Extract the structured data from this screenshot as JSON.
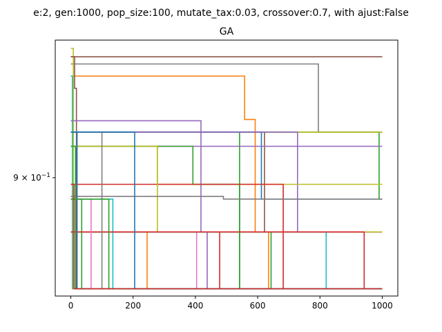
{
  "chart_data": {
    "type": "line",
    "suptitle": "e:2, gen:1000, pop_size:100, mutate_tax:0.03, crossover:0.7, with ajust:False",
    "title": "GA",
    "xlabel": "",
    "ylabel": "",
    "xlim": [
      -50,
      1050
    ],
    "ylim": [
      0.815,
      1.01
    ],
    "yscale": "log",
    "grid": false,
    "legend": "none",
    "x_ticks": [
      {
        "value": 0,
        "label": "0"
      },
      {
        "value": 200,
        "label": "200"
      },
      {
        "value": 400,
        "label": "400"
      },
      {
        "value": 600,
        "label": "600"
      },
      {
        "value": 800,
        "label": "800"
      },
      {
        "value": 1000,
        "label": "1000"
      }
    ],
    "y_ticks": [
      {
        "value": 0.9,
        "label": "9×10⁻¹",
        "base": "9 × 10",
        "exp": "−1"
      }
    ],
    "series": [
      {
        "color": "#8c564b",
        "points": [
          [
            0,
            0.996
          ],
          [
            1000,
            0.996
          ]
        ]
      },
      {
        "color": "#7f7f7f",
        "points": [
          [
            0,
            0.99
          ],
          [
            795,
            0.99
          ],
          [
            795,
            0.935
          ],
          [
            1000,
            0.935
          ]
        ]
      },
      {
        "color": "#ff7f0e",
        "points": [
          [
            0,
            0.98
          ],
          [
            558,
            0.98
          ],
          [
            558,
            0.945
          ],
          [
            592,
            0.945
          ],
          [
            592,
            0.86
          ],
          [
            1000,
            0.86
          ]
        ]
      },
      {
        "color": "#17becf",
        "points": [
          [
            0,
            0.98
          ],
          [
            5,
            0.98
          ],
          [
            5,
            0.82
          ],
          [
            1000,
            0.82
          ]
        ]
      },
      {
        "color": "#bcbd22",
        "points": [
          [
            0,
            1.003
          ],
          [
            8,
            1.003
          ],
          [
            8,
            0.82
          ],
          [
            1000,
            0.82
          ]
        ]
      },
      {
        "color": "#8c564b",
        "points": [
          [
            0,
            0.996
          ],
          [
            12,
            0.996
          ],
          [
            12,
            0.97
          ],
          [
            18,
            0.97
          ],
          [
            18,
            0.82
          ],
          [
            1000,
            0.82
          ]
        ]
      },
      {
        "color": "#9467bd",
        "points": [
          [
            0,
            0.944
          ],
          [
            418,
            0.944
          ],
          [
            418,
            0.86
          ],
          [
            1000,
            0.86
          ]
        ]
      },
      {
        "color": "#2ca02c",
        "points": [
          [
            0,
            0.935
          ],
          [
            990,
            0.935
          ],
          [
            990,
            0.884
          ],
          [
            1000,
            0.884
          ]
        ]
      },
      {
        "color": "#bcbd22",
        "points": [
          [
            0,
            0.935
          ],
          [
            1000,
            0.935
          ]
        ]
      },
      {
        "color": "#8c564b",
        "points": [
          [
            0,
            0.935
          ],
          [
            622,
            0.935
          ],
          [
            622,
            0.86
          ],
          [
            1000,
            0.86
          ]
        ]
      },
      {
        "color": "#2ca02c",
        "points": [
          [
            0,
            0.935
          ],
          [
            542,
            0.935
          ],
          [
            542,
            0.82
          ],
          [
            1000,
            0.82
          ]
        ]
      },
      {
        "color": "#1f77b4",
        "points": [
          [
            0,
            0.935
          ],
          [
            612,
            0.935
          ],
          [
            612,
            0.884
          ],
          [
            1000,
            0.884
          ]
        ]
      },
      {
        "color": "#9467bd",
        "points": [
          [
            0,
            0.935
          ],
          [
            728,
            0.935
          ],
          [
            728,
            0.86
          ],
          [
            1000,
            0.86
          ]
        ]
      },
      {
        "color": "#9467bd",
        "points": [
          [
            0,
            0.924
          ],
          [
            1000,
            0.924
          ]
        ]
      },
      {
        "color": "#bcbd22",
        "points": [
          [
            0,
            0.924
          ],
          [
            278,
            0.924
          ],
          [
            278,
            0.895
          ],
          [
            1000,
            0.895
          ]
        ]
      },
      {
        "color": "#2ca02c",
        "points": [
          [
            0,
            0.924
          ],
          [
            392,
            0.924
          ],
          [
            392,
            0.895
          ],
          [
            542,
            0.895
          ],
          [
            542,
            0.82
          ],
          [
            1000,
            0.82
          ]
        ]
      },
      {
        "color": "#d62728",
        "points": [
          [
            0,
            0.895
          ],
          [
            682,
            0.895
          ],
          [
            682,
            0.82
          ],
          [
            1000,
            0.82
          ]
        ]
      },
      {
        "color": "#bcbd22",
        "points": [
          [
            0,
            0.924
          ],
          [
            278,
            0.924
          ],
          [
            278,
            0.86
          ],
          [
            1000,
            0.86
          ]
        ]
      },
      {
        "color": "#7f7f7f",
        "points": [
          [
            0,
            0.886
          ],
          [
            490,
            0.886
          ],
          [
            490,
            0.884
          ],
          [
            1000,
            0.884
          ]
        ]
      },
      {
        "color": "#2ca02c",
        "points": [
          [
            0,
            0.884
          ],
          [
            35,
            0.884
          ],
          [
            35,
            0.82
          ],
          [
            1000,
            0.82
          ]
        ]
      },
      {
        "color": "#17becf",
        "points": [
          [
            0,
            0.884
          ],
          [
            135,
            0.884
          ],
          [
            135,
            0.82
          ],
          [
            1000,
            0.82
          ]
        ]
      },
      {
        "color": "#d62728",
        "points": [
          [
            0,
            0.86
          ],
          [
            478,
            0.86
          ],
          [
            478,
            0.82
          ],
          [
            1000,
            0.82
          ]
        ]
      },
      {
        "color": "#e377c2",
        "points": [
          [
            0,
            0.86
          ],
          [
            404,
            0.86
          ],
          [
            404,
            0.82
          ],
          [
            1000,
            0.82
          ]
        ]
      },
      {
        "color": "#ff7f0e",
        "points": [
          [
            0,
            0.86
          ],
          [
            245,
            0.86
          ],
          [
            245,
            0.82
          ],
          [
            1000,
            0.82
          ]
        ]
      },
      {
        "color": "#9467bd",
        "points": [
          [
            0,
            0.86
          ],
          [
            438,
            0.86
          ],
          [
            438,
            0.82
          ],
          [
            1000,
            0.82
          ]
        ]
      },
      {
        "color": "#ff7f0e",
        "points": [
          [
            0,
            0.86
          ],
          [
            635,
            0.86
          ],
          [
            635,
            0.82
          ],
          [
            1000,
            0.82
          ]
        ]
      },
      {
        "color": "#2ca02c",
        "points": [
          [
            0,
            0.86
          ],
          [
            643,
            0.86
          ],
          [
            643,
            0.82
          ],
          [
            1000,
            0.82
          ]
        ]
      },
      {
        "color": "#17becf",
        "points": [
          [
            0,
            0.86
          ],
          [
            820,
            0.86
          ],
          [
            820,
            0.82
          ],
          [
            1000,
            0.82
          ]
        ]
      },
      {
        "color": "#d62728",
        "points": [
          [
            0,
            0.86
          ],
          [
            942,
            0.86
          ],
          [
            942,
            0.82
          ],
          [
            1000,
            0.82
          ]
        ]
      },
      {
        "color": "#1f77b4",
        "points": [
          [
            0,
            0.935
          ],
          [
            20,
            0.935
          ],
          [
            20,
            0.82
          ],
          [
            1000,
            0.82
          ]
        ]
      },
      {
        "color": "#2ca02c",
        "points": [
          [
            0,
            0.924
          ],
          [
            15,
            0.924
          ],
          [
            15,
            0.82
          ],
          [
            1000,
            0.82
          ]
        ]
      },
      {
        "color": "#e377c2",
        "points": [
          [
            0,
            0.884
          ],
          [
            65,
            0.884
          ],
          [
            65,
            0.82
          ],
          [
            1000,
            0.82
          ]
        ]
      },
      {
        "color": "#7f7f7f",
        "points": [
          [
            0,
            0.935
          ],
          [
            100,
            0.935
          ],
          [
            100,
            0.82
          ],
          [
            1000,
            0.82
          ]
        ]
      },
      {
        "color": "#2ca02c",
        "points": [
          [
            0,
            0.884
          ],
          [
            122,
            0.884
          ],
          [
            122,
            0.82
          ],
          [
            1000,
            0.82
          ]
        ]
      },
      {
        "color": "#1f77b4",
        "points": [
          [
            0,
            0.935
          ],
          [
            205,
            0.935
          ],
          [
            205,
            0.82
          ],
          [
            1000,
            0.82
          ]
        ]
      },
      {
        "color": "#d62728",
        "points": [
          [
            0,
            0.895
          ],
          [
            10,
            0.895
          ],
          [
            10,
            0.82
          ],
          [
            1000,
            0.82
          ]
        ]
      }
    ]
  }
}
